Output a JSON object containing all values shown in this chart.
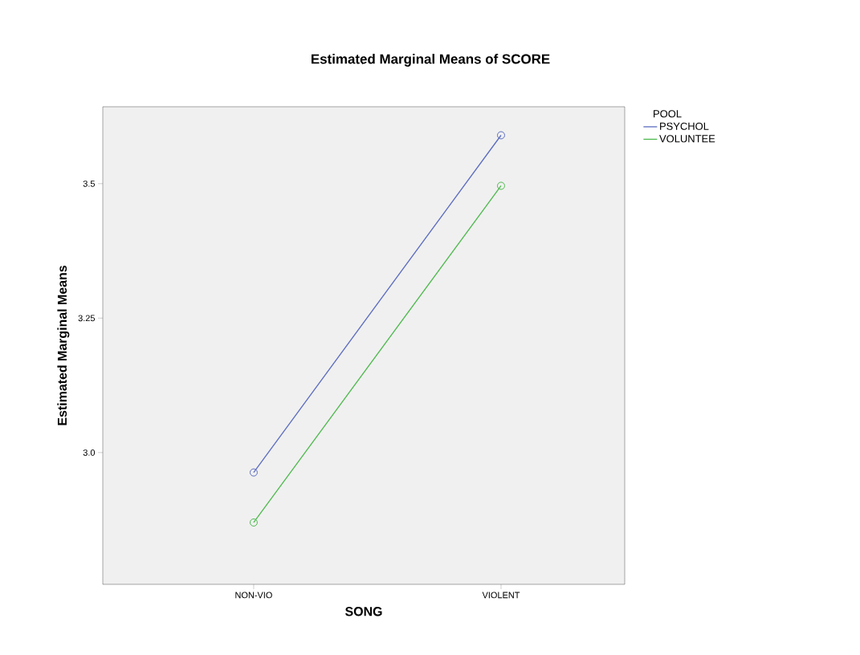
{
  "chart_data": {
    "type": "line",
    "title": "Estimated Marginal Means of SCORE",
    "xlabel": "SONG",
    "ylabel": "Estimated Marginal Means",
    "legend_title": "POOL",
    "categories": [
      "NON-VIO",
      "VIOLENT"
    ],
    "series": [
      {
        "name": "PSYCHOL",
        "color": "#5a6bbf",
        "values": [
          2.963,
          3.59
        ]
      },
      {
        "name": "VOLUNTEE",
        "color": "#4cb84c",
        "values": [
          2.87,
          3.496
        ]
      }
    ],
    "ylim": [
      2.755,
      3.643
    ],
    "yticks": [
      {
        "value": 3,
        "label": "3.0"
      },
      3.25,
      3.5
    ],
    "grid": false,
    "legend": "top right",
    "marker": "circle",
    "line_style": "solid"
  }
}
